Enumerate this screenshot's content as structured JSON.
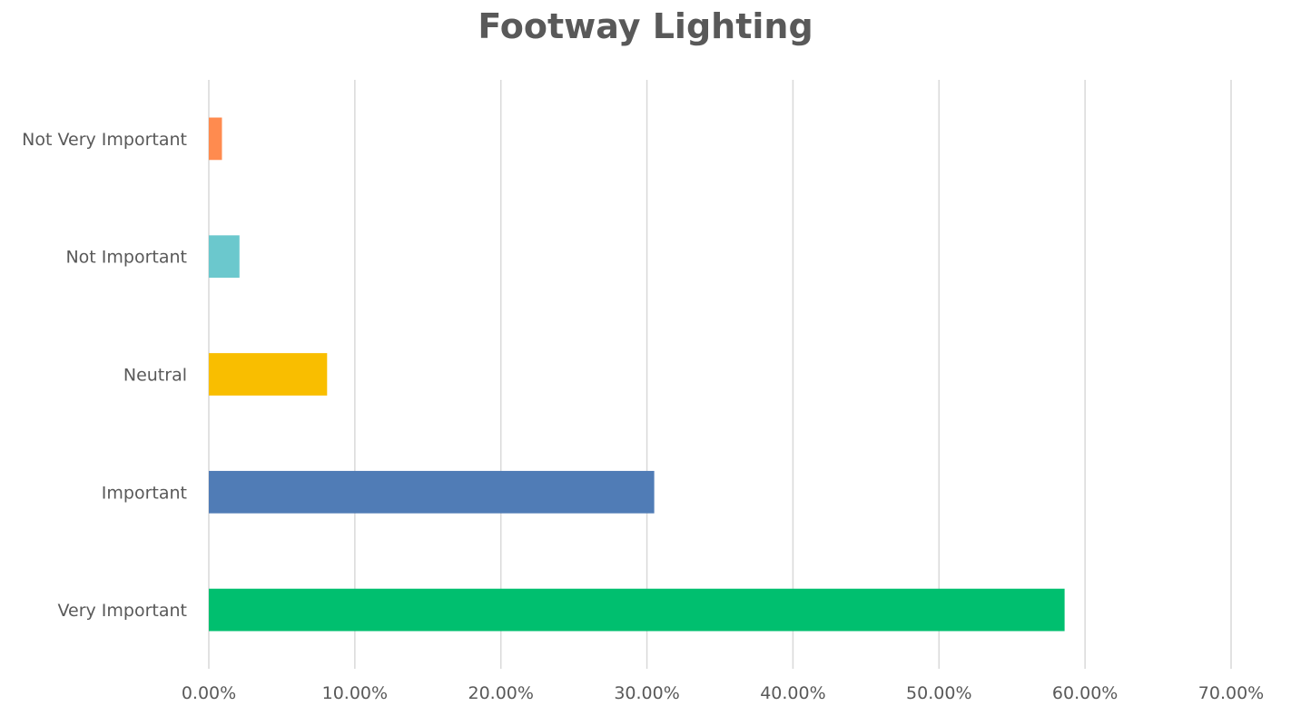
{
  "chart_data": {
    "type": "bar",
    "orientation": "horizontal",
    "title": "Footway Lighting",
    "xlabel": "",
    "ylabel": "",
    "categories": [
      "Very Important",
      "Important",
      "Neutral",
      "Not Important",
      "Not Very Important"
    ],
    "values": [
      58.6,
      30.5,
      8.1,
      2.1,
      0.9
    ],
    "colors": [
      "#00BF6F",
      "#507CB6",
      "#F9BE00",
      "#6BC8CD",
      "#FF8B4F"
    ],
    "value_format": "percent_2dp",
    "x_ticks": [
      "0.00%",
      "10.00%",
      "20.00%",
      "30.00%",
      "40.00%",
      "50.00%",
      "60.00%",
      "70.00%"
    ],
    "xlim": [
      0,
      70
    ],
    "grid": true,
    "legend": "none"
  }
}
